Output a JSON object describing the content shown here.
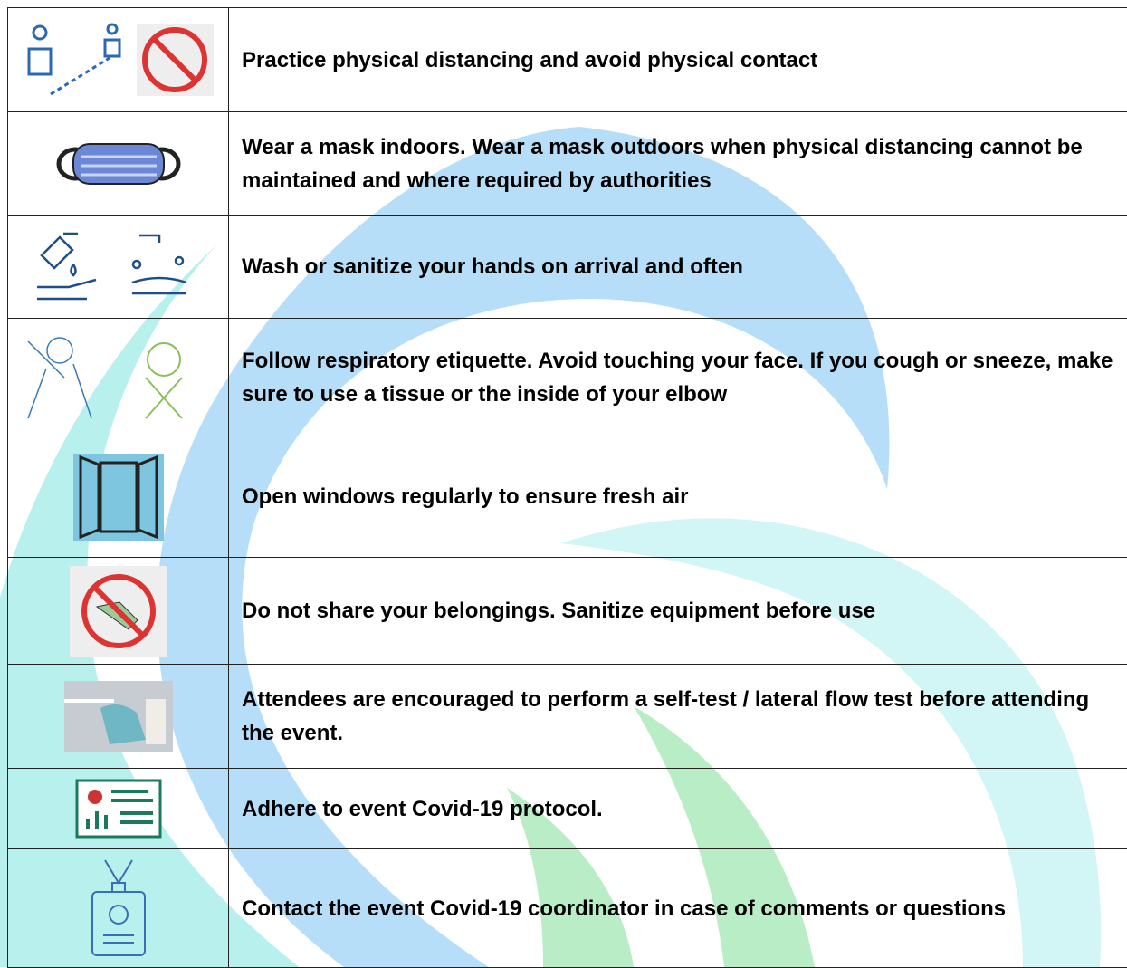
{
  "rows": [
    "Practice physical distancing and avoid physical contact",
    "Wear a mask indoors. Wear a mask outdoors when physical distancing cannot be maintained and where required by authorities",
    "Wash or sanitize your hands on arrival and often",
    "Follow respiratory etiquette. Avoid touching your face. If you cough or sneeze, make sure to use a tissue or the inside of your elbow",
    "Open windows regularly to ensure fresh air",
    "Do not share your belongings. Sanitize equipment before use",
    "Attendees are encouraged to perform a self-test / lateral flow test before attending the event.",
    "Adhere to event Covid-19 protocol.",
    "Contact the event Covid-19 coordinator in case of comments or questions"
  ]
}
